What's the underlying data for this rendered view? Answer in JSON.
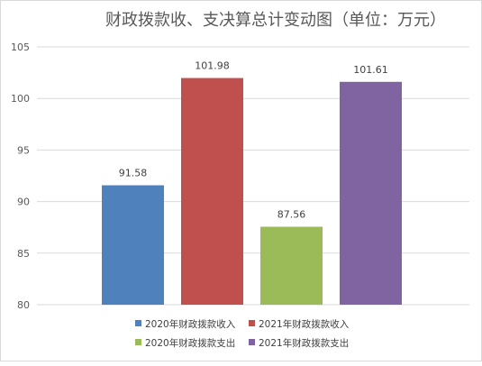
{
  "chart_data": {
    "type": "bar",
    "title": "财政拨款收、支决算总计变动图（单位：万元）",
    "xlabel": "",
    "ylabel": "",
    "ylim": [
      80,
      105
    ],
    "yticks": [
      "80",
      "85",
      "90",
      "95",
      "100",
      "105"
    ],
    "grid": true,
    "legend_position": "bottom",
    "categories": [
      "2020年财政拨款收入",
      "2021年财政拨款收入",
      "2020年财政拨款支出",
      "2021年财政拨款支出"
    ],
    "values": [
      91.58,
      101.98,
      87.56,
      101.61
    ],
    "value_labels": [
      "91.58",
      "101.98",
      "87.56",
      "101.61"
    ],
    "colors": [
      "#4f81bd",
      "#c0504d",
      "#9bbb59",
      "#8064a2"
    ]
  }
}
